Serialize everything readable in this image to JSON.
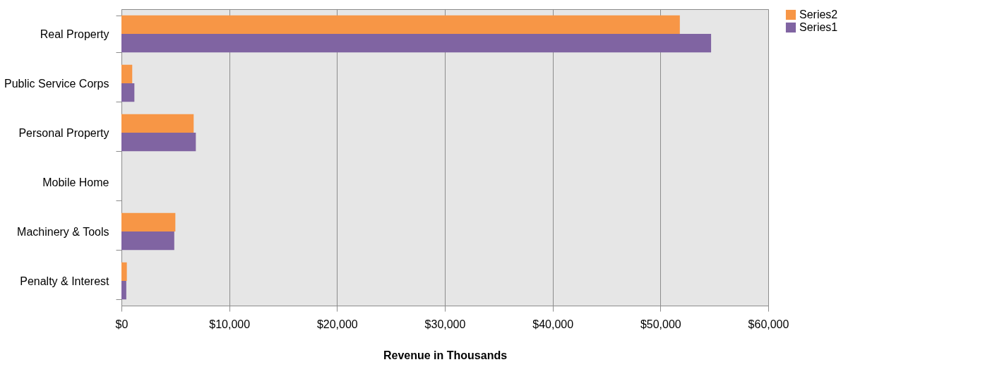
{
  "chart_data": {
    "type": "bar",
    "orientation": "horizontal",
    "xlabel": "Revenue in Thousands",
    "categories": [
      "Real Property",
      "Public Service Corps",
      "Personal Property",
      "Mobile Home",
      "Machinery & Tools",
      "Penalty & Interest"
    ],
    "series": [
      {
        "name": "Series2",
        "color": "#f79646",
        "values": [
          51800,
          1000,
          6700,
          0,
          5000,
          500
        ]
      },
      {
        "name": "Series1",
        "color": "#8064a2",
        "values": [
          54700,
          1200,
          6900,
          0,
          4900,
          450
        ]
      }
    ],
    "xlim": [
      0,
      60000
    ],
    "xticks": [
      {
        "value": 0,
        "label": "$0"
      },
      {
        "value": 10000,
        "label": "$10,000"
      },
      {
        "value": 20000,
        "label": "$20,000"
      },
      {
        "value": 30000,
        "label": "$30,000"
      },
      {
        "value": 40000,
        "label": "$40,000"
      },
      {
        "value": 50000,
        "label": "$50,000"
      },
      {
        "value": 60000,
        "label": "$60,000"
      }
    ],
    "grid": "x",
    "legend": "right"
  }
}
